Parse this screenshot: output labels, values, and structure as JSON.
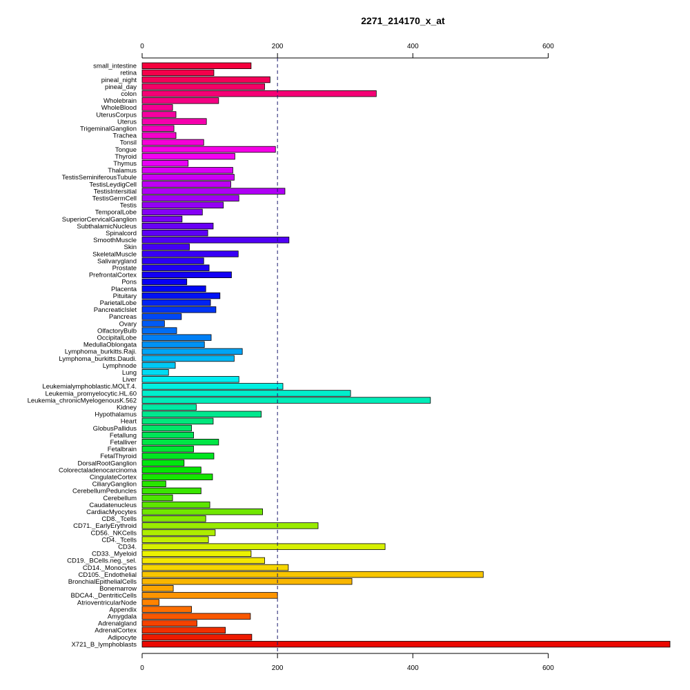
{
  "chart_data": {
    "type": "bar",
    "orientation": "horizontal",
    "title": "2271_214170_x_at",
    "xlabel": "",
    "ylabel": "",
    "xlim": [
      0,
      780
    ],
    "xticks": [
      0,
      200,
      400,
      600
    ],
    "reference_line": 200,
    "grid": false,
    "categories": [
      "small_intestine",
      "retina",
      "pineal_night",
      "pineal_day",
      "colon",
      "Wholebrain",
      "WholeBlood",
      "UterusCorpus",
      "Uterus",
      "TrigeminalGanglion",
      "Trachea",
      "Tonsil",
      "Tongue",
      "Thyroid",
      "Thymus",
      "Thalamus",
      "TestisSeminiferousTubule",
      "TestisLeydigCell",
      "TestisIntersitial",
      "TestisGermCell",
      "Testis",
      "TemporalLobe",
      "SuperiorCervicalGanglion",
      "SubthalamicNucleus",
      "Spinalcord",
      "SmoothMuscle",
      "Skin",
      "SkeletalMuscle",
      "Salivarygland",
      "Prostate",
      "PrefrontalCortex",
      "Pons",
      "Placenta",
      "Pituitary",
      "ParietalLobe",
      "PancreaticIslet",
      "Pancreas",
      "Ovary",
      "OlfactoryBulb",
      "OccipitalLobe",
      "MedullaOblongata",
      "Lymphoma_burkitts.Raji.",
      "Lymphoma_burkitts.Daudi.",
      "Lymphnode",
      "Lung",
      "Liver",
      "Leukemialymphoblastic.MOLT.4.",
      "Leukemia_promyelocytic.HL.60",
      "Leukemia_chronicMyelogenousK.562",
      "Kidney",
      "Hypothalamus",
      "Heart",
      "GlobusPallidus",
      "Fetallung",
      "Fetalliver",
      "Fetalbrain",
      "FetalThyroid",
      "DorsalRootGanglion",
      "Colorectaladenocarcinoma",
      "CingulateCortex",
      "CiliaryGanglion",
      "CerebellumPeduncles",
      "Cerebellum",
      "Caudatenucleus",
      "CardiacMyocytes",
      "CD8._Tcells",
      "CD71._EarlyErythroid",
      "CD56._NKCells",
      "CD4._Tcells",
      "CD34.",
      "CD33._Myeloid",
      "CD19._BCells.neg._sel.",
      "CD14._Monocytes",
      "CD105._Endothelial",
      "BronchialEpithelialCells",
      "Bonemarrow",
      "BDCA4._DentriticCells",
      "AtrioventricularNode",
      "Appendix",
      "Amygdala",
      "Adrenalgland",
      "AdrenalCortex",
      "Adipocyte",
      "X721_B_lymphoblasts"
    ],
    "values": [
      161,
      106,
      189,
      181,
      346,
      113,
      45,
      50,
      95,
      47,
      50,
      91,
      197,
      137,
      68,
      134,
      136,
      131,
      211,
      143,
      120,
      89,
      59,
      105,
      97,
      217,
      70,
      142,
      91,
      99,
      132,
      66,
      94,
      115,
      101,
      109,
      58,
      33,
      51,
      102,
      92,
      148,
      136,
      49,
      39,
      143,
      208,
      308,
      426,
      80,
      176,
      105,
      73,
      76,
      113,
      76,
      106,
      62,
      87,
      104,
      35,
      87,
      45,
      100,
      178,
      94,
      260,
      108,
      98,
      359,
      161,
      181,
      216,
      504,
      310,
      46,
      200,
      25,
      73,
      160,
      81,
      123,
      162,
      780
    ]
  }
}
